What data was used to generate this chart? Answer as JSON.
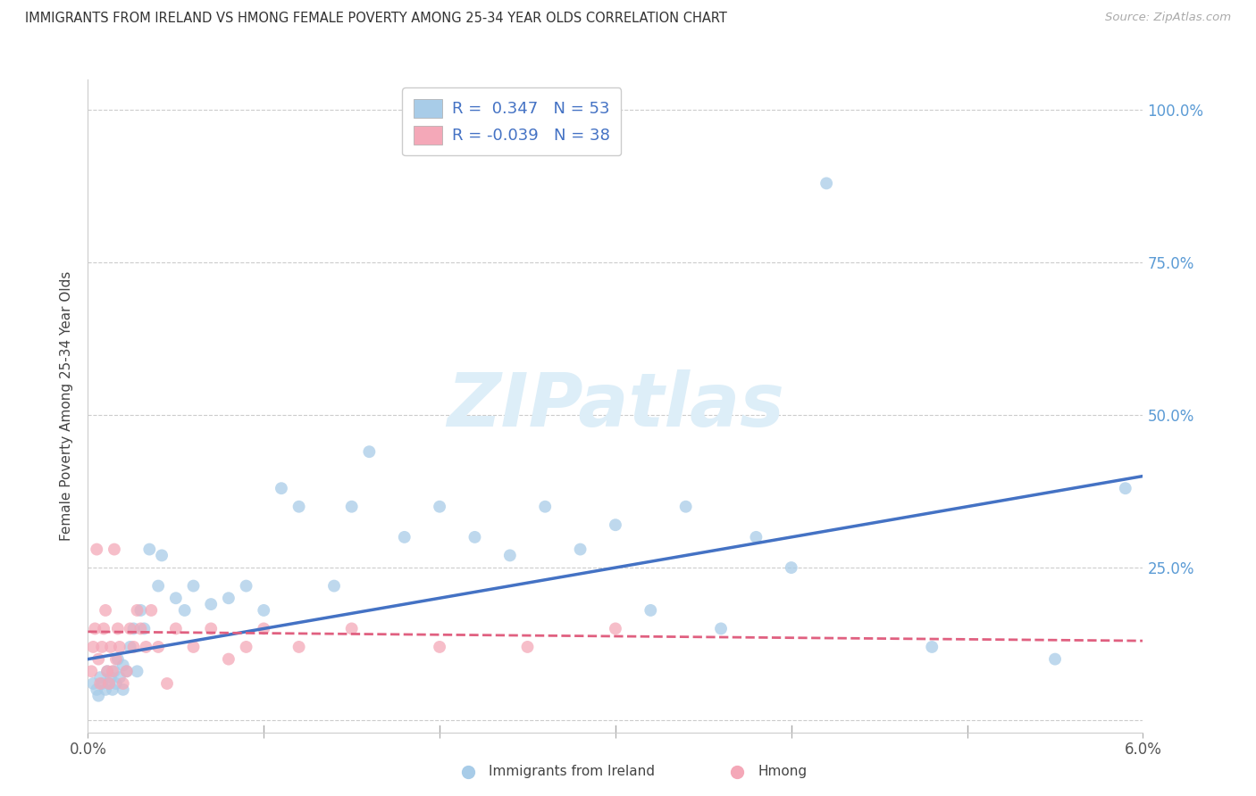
{
  "title": "IMMIGRANTS FROM IRELAND VS HMONG FEMALE POVERTY AMONG 25-34 YEAR OLDS CORRELATION CHART",
  "source": "Source: ZipAtlas.com",
  "ylabel": "Female Poverty Among 25-34 Year Olds",
  "xlim": [
    0.0,
    0.06
  ],
  "ylim": [
    -0.02,
    1.05
  ],
  "yticks": [
    0.0,
    0.25,
    0.5,
    0.75,
    1.0
  ],
  "ytick_labels": [
    "",
    "25.0%",
    "50.0%",
    "75.0%",
    "100.0%"
  ],
  "xtick_positions": [
    0.0,
    0.01,
    0.02,
    0.03,
    0.04,
    0.05,
    0.06
  ],
  "xtick_labels": [
    "0.0%",
    "",
    "",
    "",
    "",
    "",
    "6.0%"
  ],
  "ireland_R": 0.347,
  "ireland_N": 53,
  "hmong_R": -0.039,
  "hmong_N": 38,
  "ireland_color": "#a8cce8",
  "hmong_color": "#f4a8b8",
  "ireland_line_color": "#4472c4",
  "hmong_line_color": "#e06080",
  "ireland_x": [
    0.0003,
    0.0005,
    0.0006,
    0.0007,
    0.0008,
    0.001,
    0.0011,
    0.0012,
    0.0013,
    0.0014,
    0.0015,
    0.0016,
    0.0017,
    0.0018,
    0.002,
    0.002,
    0.0022,
    0.0024,
    0.0026,
    0.0028,
    0.003,
    0.0032,
    0.0035,
    0.004,
    0.0042,
    0.005,
    0.0055,
    0.006,
    0.007,
    0.008,
    0.009,
    0.01,
    0.011,
    0.012,
    0.014,
    0.015,
    0.016,
    0.018,
    0.02,
    0.022,
    0.024,
    0.026,
    0.028,
    0.03,
    0.032,
    0.034,
    0.036,
    0.038,
    0.04,
    0.042,
    0.048,
    0.055,
    0.059
  ],
  "ireland_y": [
    0.06,
    0.05,
    0.04,
    0.07,
    0.06,
    0.05,
    0.08,
    0.06,
    0.07,
    0.05,
    0.08,
    0.06,
    0.1,
    0.07,
    0.05,
    0.09,
    0.08,
    0.12,
    0.15,
    0.08,
    0.18,
    0.15,
    0.28,
    0.22,
    0.27,
    0.2,
    0.18,
    0.22,
    0.19,
    0.2,
    0.22,
    0.18,
    0.38,
    0.35,
    0.22,
    0.35,
    0.44,
    0.3,
    0.35,
    0.3,
    0.27,
    0.35,
    0.28,
    0.32,
    0.18,
    0.35,
    0.15,
    0.3,
    0.25,
    0.88,
    0.12,
    0.1,
    0.38
  ],
  "hmong_x": [
    0.0002,
    0.0003,
    0.0004,
    0.0005,
    0.0006,
    0.0007,
    0.0008,
    0.0009,
    0.001,
    0.0011,
    0.0012,
    0.0013,
    0.0014,
    0.0015,
    0.0016,
    0.0017,
    0.0018,
    0.002,
    0.0022,
    0.0024,
    0.0026,
    0.0028,
    0.003,
    0.0033,
    0.0036,
    0.004,
    0.0045,
    0.005,
    0.006,
    0.007,
    0.008,
    0.009,
    0.01,
    0.012,
    0.015,
    0.02,
    0.025,
    0.03
  ],
  "hmong_y": [
    0.08,
    0.12,
    0.15,
    0.28,
    0.1,
    0.06,
    0.12,
    0.15,
    0.18,
    0.08,
    0.06,
    0.12,
    0.08,
    0.28,
    0.1,
    0.15,
    0.12,
    0.06,
    0.08,
    0.15,
    0.12,
    0.18,
    0.15,
    0.12,
    0.18,
    0.12,
    0.06,
    0.15,
    0.12,
    0.15,
    0.1,
    0.12,
    0.15,
    0.12,
    0.15,
    0.12,
    0.12,
    0.15
  ],
  "ireland_line_x": [
    0.0,
    0.06
  ],
  "ireland_line_y": [
    0.1,
    0.4
  ],
  "hmong_line_x": [
    0.0,
    0.06
  ],
  "hmong_line_y": [
    0.145,
    0.13
  ]
}
